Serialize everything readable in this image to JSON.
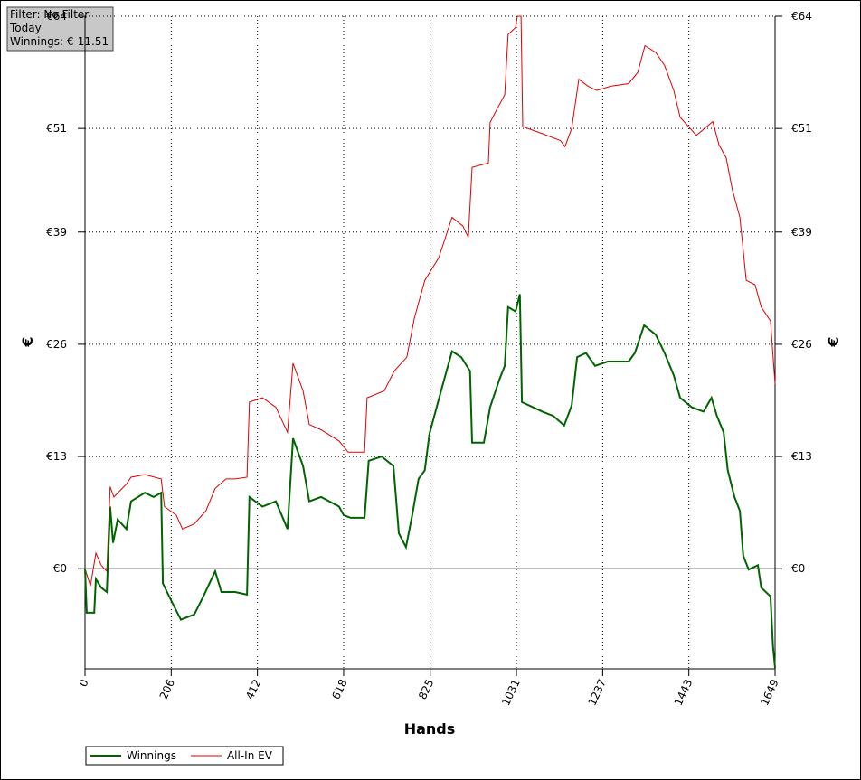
{
  "chart_data": {
    "type": "line",
    "annotation_lines": [
      "Filter: No Filter",
      "Today",
      "Winnings: €-11.51"
    ],
    "x_label": "Hands",
    "y_label": "€",
    "xlim": [
      0,
      1649
    ],
    "xticks": [
      0,
      206,
      412,
      618,
      825,
      1031,
      1237,
      1443,
      1649
    ],
    "ylim": [
      -11.6,
      64
    ],
    "yticks": [
      {
        "value": 0,
        "label": "€0"
      },
      {
        "value": 13,
        "label": "€13"
      },
      {
        "value": 26,
        "label": "€26"
      },
      {
        "value": 39,
        "label": "€39"
      },
      {
        "value": 51,
        "label": "€51"
      },
      {
        "value": 64,
        "label": "€64"
      }
    ],
    "grid": true,
    "series": [
      {
        "name": "Winnings",
        "color": "#006400",
        "x": [
          0,
          4,
          22,
          26,
          39,
          52,
          60,
          67,
          78,
          99,
          110,
          143,
          164,
          182,
          186,
          207,
          229,
          261,
          283,
          311,
          326,
          359,
          387,
          393,
          424,
          456,
          484,
          497,
          521,
          536,
          564,
          607,
          618,
          635,
          668,
          678,
          709,
          737,
          750,
          767,
          782,
          797,
          812,
          823,
          852,
          877,
          899,
          920,
          925,
          953,
          968,
          990,
          1003,
          1011,
          1029,
          1039,
          1044,
          1093,
          1119,
          1145,
          1163,
          1176,
          1197,
          1219,
          1249,
          1299,
          1314,
          1336,
          1364,
          1385,
          1407,
          1422,
          1450,
          1478,
          1497,
          1510,
          1526,
          1536,
          1552,
          1565,
          1573,
          1586,
          1608,
          1616,
          1638,
          1644,
          1649
        ],
        "values": [
          0,
          -5.1,
          -5.1,
          -1.2,
          -2.2,
          -2.7,
          7.2,
          3.0,
          5.7,
          4.6,
          7.8,
          8.8,
          8.3,
          8.8,
          -1.7,
          -3.8,
          -5.9,
          -5.3,
          -3.2,
          -0.3,
          -2.7,
          -2.7,
          -3.0,
          8.3,
          7.2,
          7.8,
          4.6,
          15.1,
          11.9,
          7.8,
          8.3,
          7.2,
          6.2,
          5.9,
          5.9,
          12.5,
          13.0,
          11.9,
          4.1,
          2.5,
          6.2,
          10.4,
          11.4,
          15.6,
          20.8,
          25.2,
          24.5,
          22.9,
          14.6,
          14.6,
          18.7,
          21.9,
          23.5,
          30.3,
          29.8,
          31.8,
          19.3,
          18.2,
          17.7,
          16.6,
          18.9,
          24.5,
          25.0,
          23.5,
          24.0,
          24.0,
          25.0,
          28.2,
          27.1,
          25.0,
          22.4,
          19.8,
          18.7,
          18.2,
          19.8,
          17.7,
          15.8,
          11.4,
          8.3,
          6.7,
          1.5,
          -0.1,
          0.4,
          -2.2,
          -3.2,
          -9.0,
          -11.5
        ]
      },
      {
        "name": "All-In EV",
        "color": "#e00000",
        "x": [
          0,
          13,
          26,
          39,
          52,
          60,
          69,
          99,
          110,
          143,
          182,
          190,
          218,
          233,
          261,
          289,
          311,
          337,
          359,
          387,
          393,
          424,
          456,
          484,
          497,
          521,
          536,
          564,
          607,
          629,
          668,
          674,
          715,
          739,
          769,
          787,
          812,
          845,
          856,
          877,
          903,
          916,
          925,
          964,
          968,
          985,
          1003,
          1011,
          1029,
          1033,
          1042,
          1046,
          1093,
          1136,
          1147,
          1163,
          1180,
          1202,
          1223,
          1256,
          1299,
          1321,
          1338,
          1364,
          1385,
          1407,
          1422,
          1461,
          1500,
          1515,
          1532,
          1547,
          1565,
          1580,
          1601,
          1616,
          1638,
          1649
        ],
        "values": [
          0,
          -2.0,
          1.8,
          0.4,
          -0.3,
          9.5,
          8.3,
          9.8,
          10.6,
          10.9,
          10.4,
          7.2,
          6.2,
          4.6,
          5.2,
          6.7,
          9.3,
          10.4,
          10.4,
          10.6,
          19.3,
          19.8,
          18.7,
          15.8,
          23.8,
          20.6,
          16.7,
          16.1,
          14.8,
          13.5,
          13.5,
          19.8,
          20.6,
          22.9,
          24.5,
          29.0,
          33.4,
          36.0,
          37.6,
          40.7,
          39.7,
          38.4,
          46.5,
          47.0,
          51.7,
          53.3,
          54.9,
          61.9,
          62.7,
          64.0,
          64.0,
          51.2,
          50.4,
          49.6,
          48.9,
          51.0,
          56.7,
          55.9,
          55.4,
          55.9,
          56.2,
          57.5,
          60.6,
          59.8,
          58.3,
          55.4,
          52.3,
          50.2,
          51.8,
          49.1,
          47.6,
          43.9,
          40.7,
          33.4,
          32.9,
          30.3,
          28.7,
          21.4
        ]
      }
    ]
  }
}
